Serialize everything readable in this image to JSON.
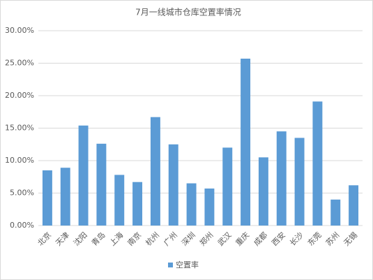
{
  "chart_data": {
    "type": "bar",
    "title": "7月一线城市仓库空置率情况",
    "categories": [
      "北京",
      "天津",
      "沈阳",
      "青岛",
      "上海",
      "南京",
      "杭州",
      "广州",
      "深圳",
      "郑州",
      "武汉",
      "重庆",
      "成都",
      "西安",
      "长沙",
      "东莞",
      "苏州",
      "无锡"
    ],
    "series": [
      {
        "name": "空置率",
        "color": "#5b9bd5",
        "values": [
          8.5,
          8.9,
          15.4,
          12.6,
          7.8,
          6.7,
          16.7,
          12.5,
          6.5,
          5.7,
          12.0,
          25.7,
          10.5,
          14.5,
          13.5,
          19.1,
          4.0,
          6.2
        ]
      }
    ],
    "ylim": [
      0,
      30
    ],
    "yticks": [
      {
        "value": 0,
        "label": "0.00%"
      },
      {
        "value": 5,
        "label": "5.00%"
      },
      {
        "value": 10,
        "label": "10.00%"
      },
      {
        "value": 15,
        "label": "15.00%"
      },
      {
        "value": 20,
        "label": "20.00%"
      },
      {
        "value": 25,
        "label": "25.00%"
      },
      {
        "value": 30,
        "label": "30.00%"
      }
    ],
    "grid": true,
    "legend": "bottom"
  }
}
